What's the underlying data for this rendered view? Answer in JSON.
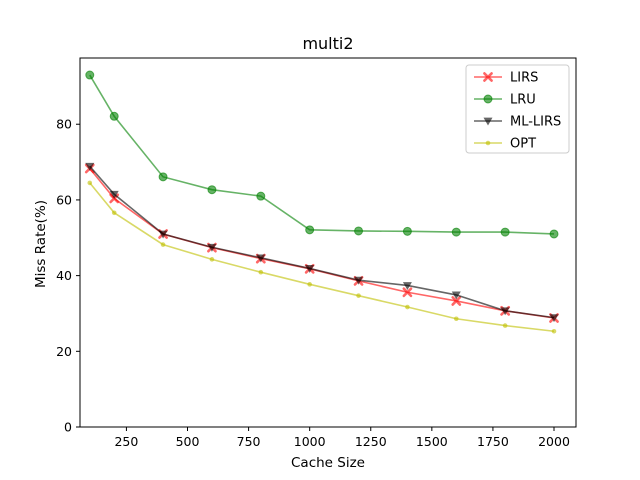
{
  "chart_data": {
    "type": "line",
    "title": "multi2",
    "xlabel": "Cache Size",
    "ylabel": "Miss Rate(%)",
    "xlim": [
      60,
      2090
    ],
    "ylim": [
      0,
      97.5
    ],
    "xticks": [
      250,
      500,
      750,
      1000,
      1250,
      1500,
      1750,
      2000
    ],
    "yticks": [
      0,
      20,
      40,
      60,
      80
    ],
    "grid": false,
    "legend_position": "top-right",
    "x": [
      100,
      200,
      400,
      600,
      800,
      1000,
      1200,
      1400,
      1600,
      1800,
      2000
    ],
    "series": [
      {
        "name": "LIRS",
        "color": "#ff0000",
        "marker": "x",
        "values": [
          68.3,
          60.4,
          51.0,
          47.4,
          44.5,
          41.8,
          38.6,
          35.6,
          33.3,
          30.7,
          28.8
        ]
      },
      {
        "name": "LRU",
        "color": "#008000",
        "marker": "circle",
        "values": [
          93.0,
          82.1,
          66.1,
          62.7,
          61.0,
          52.1,
          51.8,
          51.7,
          51.5,
          51.5,
          51.0
        ]
      },
      {
        "name": "ML-LIRS",
        "color": "#000000",
        "marker": "triangle-down",
        "values": [
          68.9,
          61.5,
          51.0,
          47.5,
          44.7,
          41.9,
          38.8,
          37.4,
          34.9,
          30.7,
          28.9
        ]
      },
      {
        "name": "OPT",
        "color": "#bfbf00",
        "marker": "dot",
        "values": [
          64.5,
          56.6,
          48.2,
          44.3,
          40.9,
          37.7,
          34.7,
          31.7,
          28.6,
          26.8,
          25.3
        ]
      }
    ]
  }
}
